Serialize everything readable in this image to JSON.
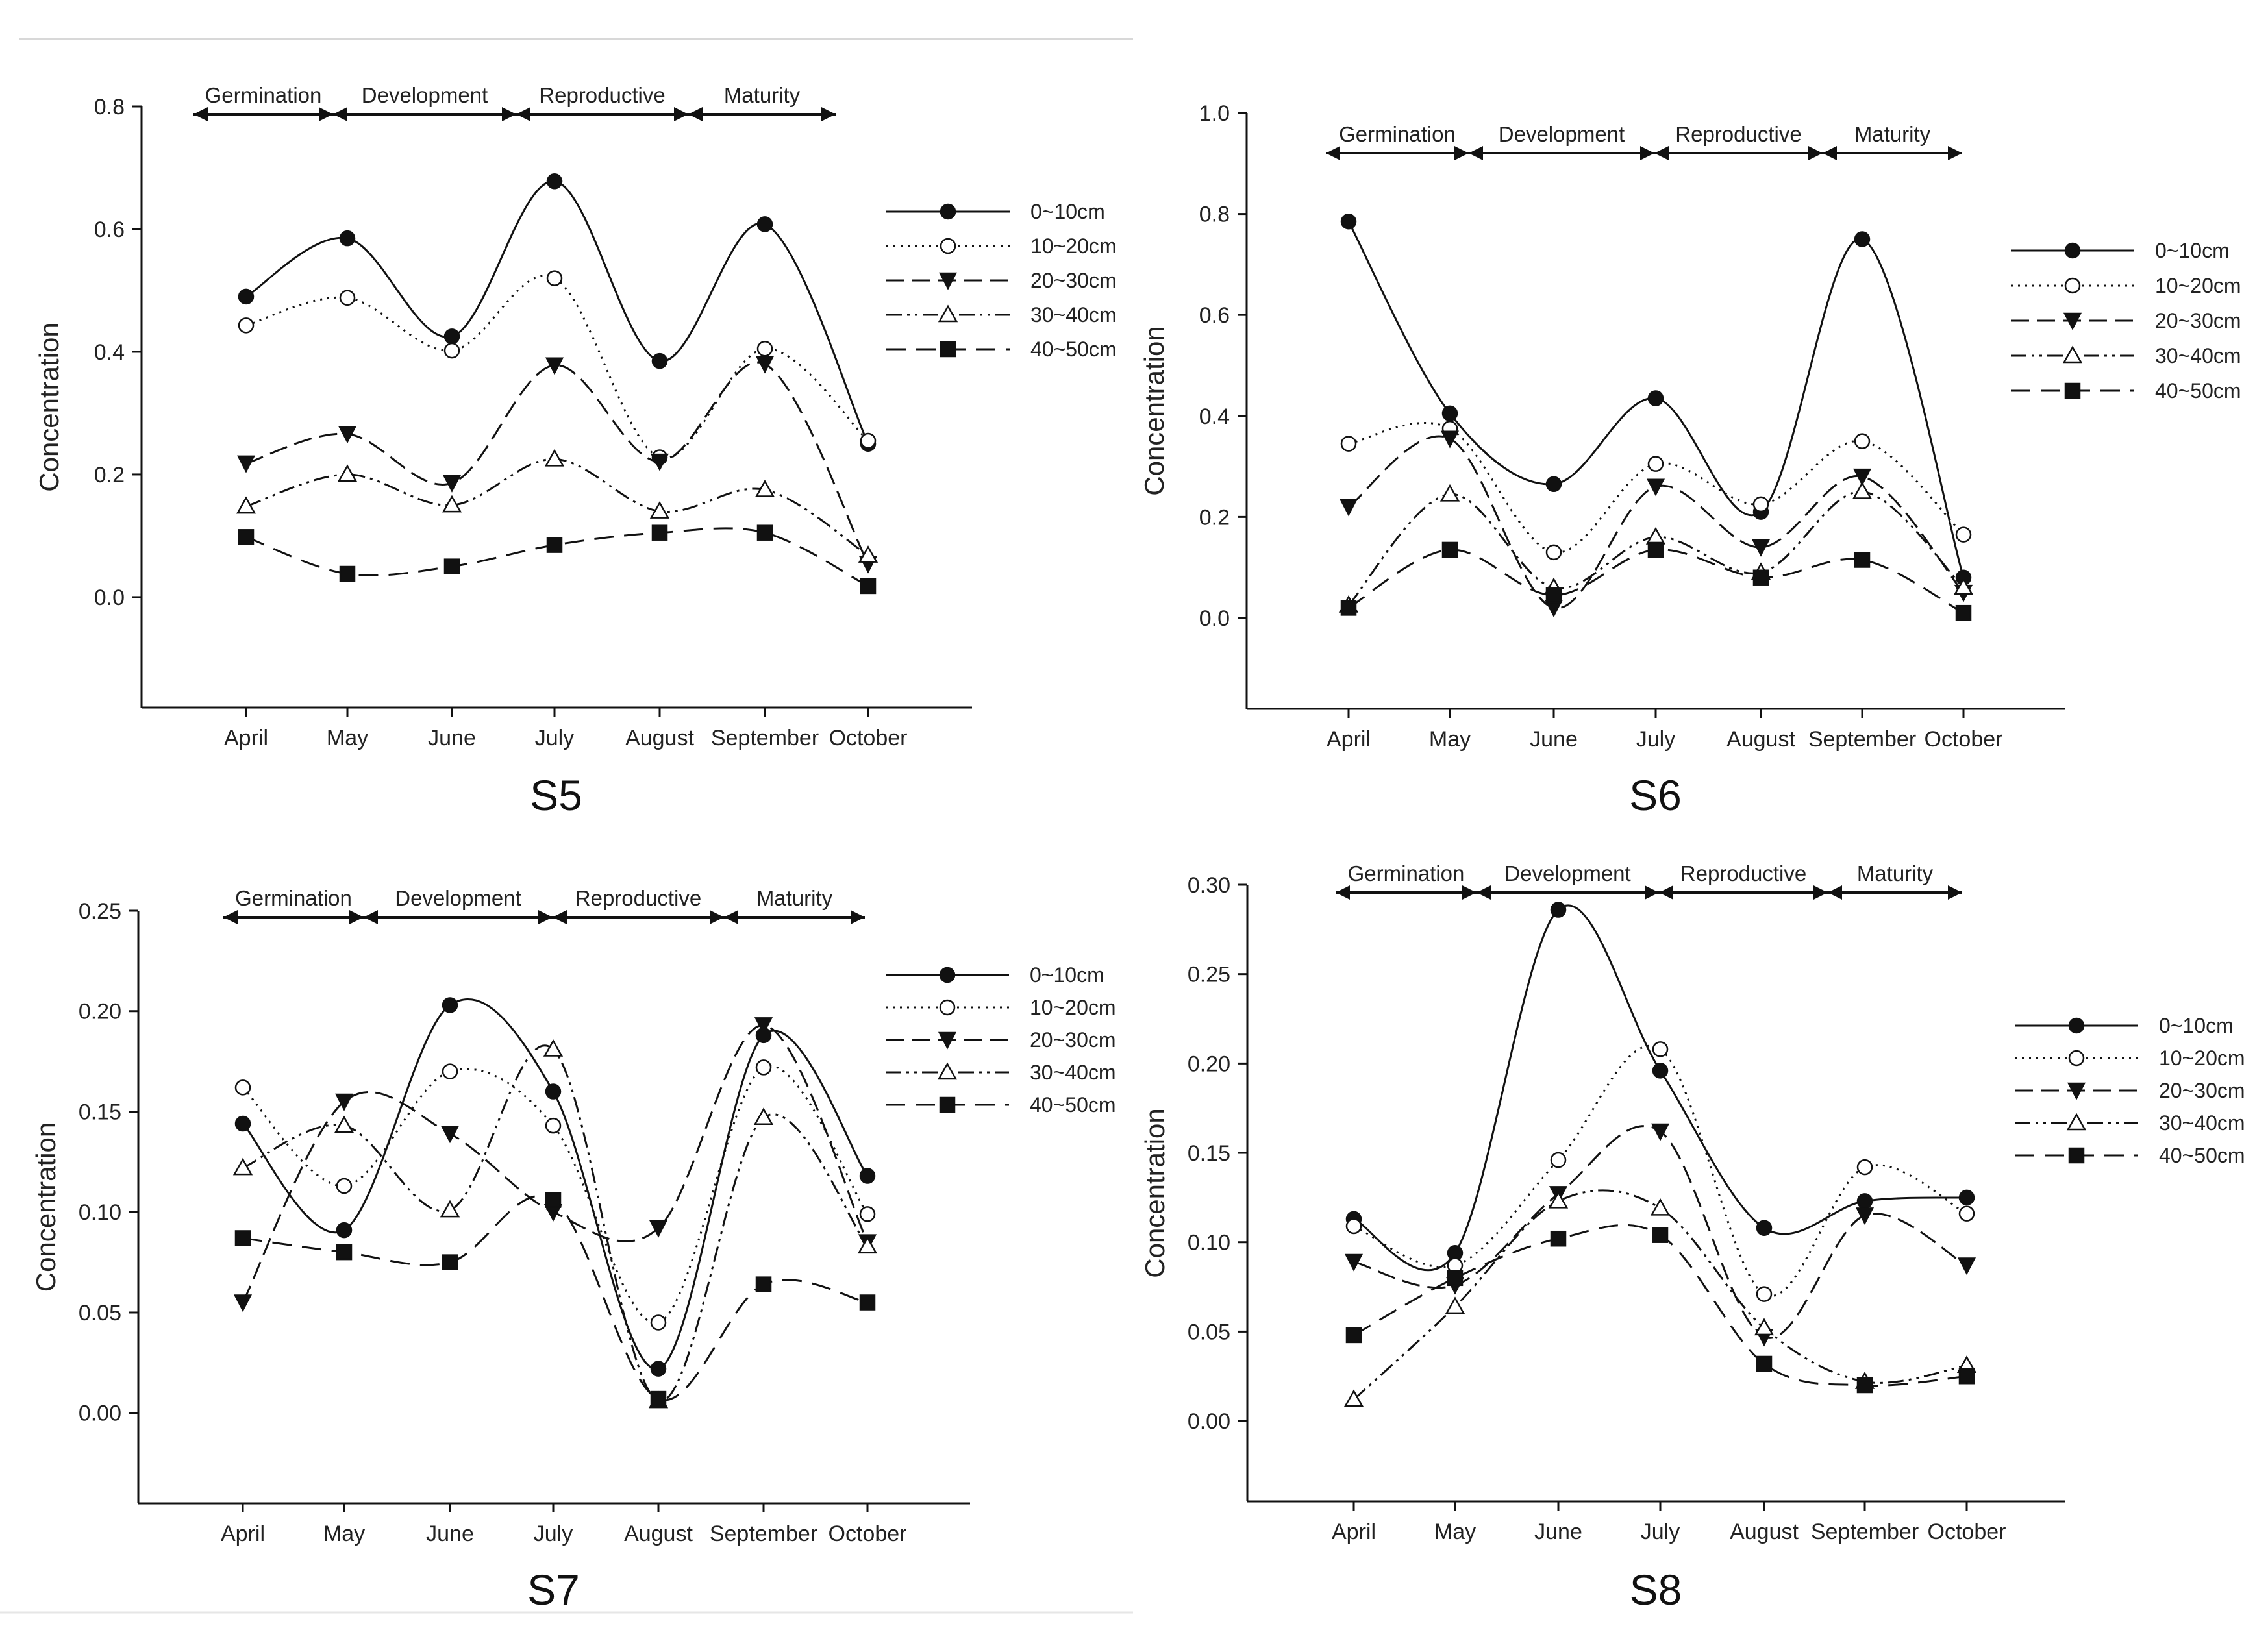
{
  "chart_data": [
    {
      "type": "line",
      "title": "S5",
      "xlabel": "",
      "ylabel": "Concentration",
      "categories": [
        "April",
        "May",
        "June",
        "July",
        "August",
        "September",
        "October"
      ],
      "ylim": [
        -0.18,
        0.8
      ],
      "yticks": [
        "0.0",
        "0.2",
        "0.4",
        "0.6",
        "0.8"
      ],
      "stages": [
        "Germination",
        "Development",
        "Reproductive",
        "Maturity"
      ],
      "series": [
        {
          "name": "0~10cm",
          "values": [
            0.49,
            0.585,
            0.425,
            0.678,
            0.385,
            0.608,
            0.25
          ]
        },
        {
          "name": "10~20cm",
          "values": [
            0.443,
            0.488,
            0.402,
            0.52,
            0.228,
            0.405,
            0.255
          ]
        },
        {
          "name": "20~30cm",
          "values": [
            0.218,
            0.266,
            0.186,
            0.378,
            0.221,
            0.38,
            0.054
          ]
        },
        {
          "name": "30~40cm",
          "values": [
            0.148,
            0.2,
            0.15,
            0.225,
            0.14,
            0.175,
            0.068
          ]
        },
        {
          "name": "40~50cm",
          "values": [
            0.098,
            0.038,
            0.05,
            0.085,
            0.105,
            0.105,
            0.018
          ]
        }
      ]
    },
    {
      "type": "line",
      "title": "S6",
      "xlabel": "",
      "ylabel": "Concentration",
      "categories": [
        "April",
        "May",
        "June",
        "July",
        "August",
        "September",
        "October"
      ],
      "ylim": [
        -0.18,
        1.0
      ],
      "yticks": [
        "0.0",
        "0.2",
        "0.4",
        "0.6",
        "0.8",
        "1.0"
      ],
      "stages": [
        "Germination",
        "Development",
        "Reproductive",
        "Maturity"
      ],
      "series": [
        {
          "name": "0~10cm",
          "values": [
            0.785,
            0.405,
            0.265,
            0.435,
            0.21,
            0.75,
            0.08
          ]
        },
        {
          "name": "10~20cm",
          "values": [
            0.345,
            0.375,
            0.13,
            0.305,
            0.225,
            0.35,
            0.165
          ]
        },
        {
          "name": "20~30cm",
          "values": [
            0.22,
            0.355,
            0.02,
            0.26,
            0.14,
            0.28,
            0.05
          ]
        },
        {
          "name": "30~40cm",
          "values": [
            0.025,
            0.245,
            0.06,
            0.16,
            0.09,
            0.25,
            0.06
          ]
        },
        {
          "name": "40~50cm",
          "values": [
            0.02,
            0.135,
            0.045,
            0.135,
            0.08,
            0.115,
            0.01
          ]
        }
      ]
    },
    {
      "type": "line",
      "title": "S7",
      "xlabel": "",
      "ylabel": "Concentration",
      "categories": [
        "April",
        "May",
        "June",
        "July",
        "August",
        "September",
        "October"
      ],
      "ylim": [
        -0.045,
        0.25
      ],
      "yticks": [
        "0.00",
        "0.05",
        "0.10",
        "0.15",
        "0.20",
        "0.25"
      ],
      "stages": [
        "Germination",
        "Development",
        "Reproductive",
        "Maturity"
      ],
      "series": [
        {
          "name": "0~10cm",
          "values": [
            0.144,
            0.091,
            0.203,
            0.16,
            0.022,
            0.188,
            0.118
          ]
        },
        {
          "name": "10~20cm",
          "values": [
            0.162,
            0.113,
            0.17,
            0.143,
            0.045,
            0.172,
            0.099
          ]
        },
        {
          "name": "20~30cm",
          "values": [
            0.055,
            0.155,
            0.139,
            0.1,
            0.092,
            0.193,
            0.085
          ]
        },
        {
          "name": "30~40cm",
          "values": [
            0.122,
            0.143,
            0.101,
            0.181,
            0.006,
            0.147,
            0.083
          ]
        },
        {
          "name": "40~50cm",
          "values": [
            0.087,
            0.08,
            0.075,
            0.106,
            0.007,
            0.064,
            0.055
          ]
        }
      ]
    },
    {
      "type": "line",
      "title": "S8",
      "xlabel": "",
      "ylabel": "Concentration",
      "categories": [
        "April",
        "May",
        "June",
        "July",
        "August",
        "September",
        "October"
      ],
      "ylim": [
        -0.045,
        0.3
      ],
      "yticks": [
        "0.00",
        "0.05",
        "0.10",
        "0.15",
        "0.20",
        "0.25",
        "0.30"
      ],
      "stages": [
        "Germination",
        "Development",
        "Reproductive",
        "Maturity"
      ],
      "series": [
        {
          "name": "0~10cm",
          "values": [
            0.113,
            0.094,
            0.286,
            0.196,
            0.108,
            0.123,
            0.125
          ]
        },
        {
          "name": "10~20cm",
          "values": [
            0.109,
            0.087,
            0.146,
            0.208,
            0.071,
            0.142,
            0.116
          ]
        },
        {
          "name": "20~30cm",
          "values": [
            0.089,
            0.076,
            0.127,
            0.162,
            0.047,
            0.115,
            0.087
          ]
        },
        {
          "name": "30~40cm",
          "values": [
            0.012,
            0.064,
            0.123,
            0.119,
            0.052,
            0.022,
            0.031
          ]
        },
        {
          "name": "40~50cm",
          "values": [
            0.048,
            0.08,
            0.102,
            0.104,
            0.032,
            0.02,
            0.025
          ]
        }
      ]
    }
  ]
}
